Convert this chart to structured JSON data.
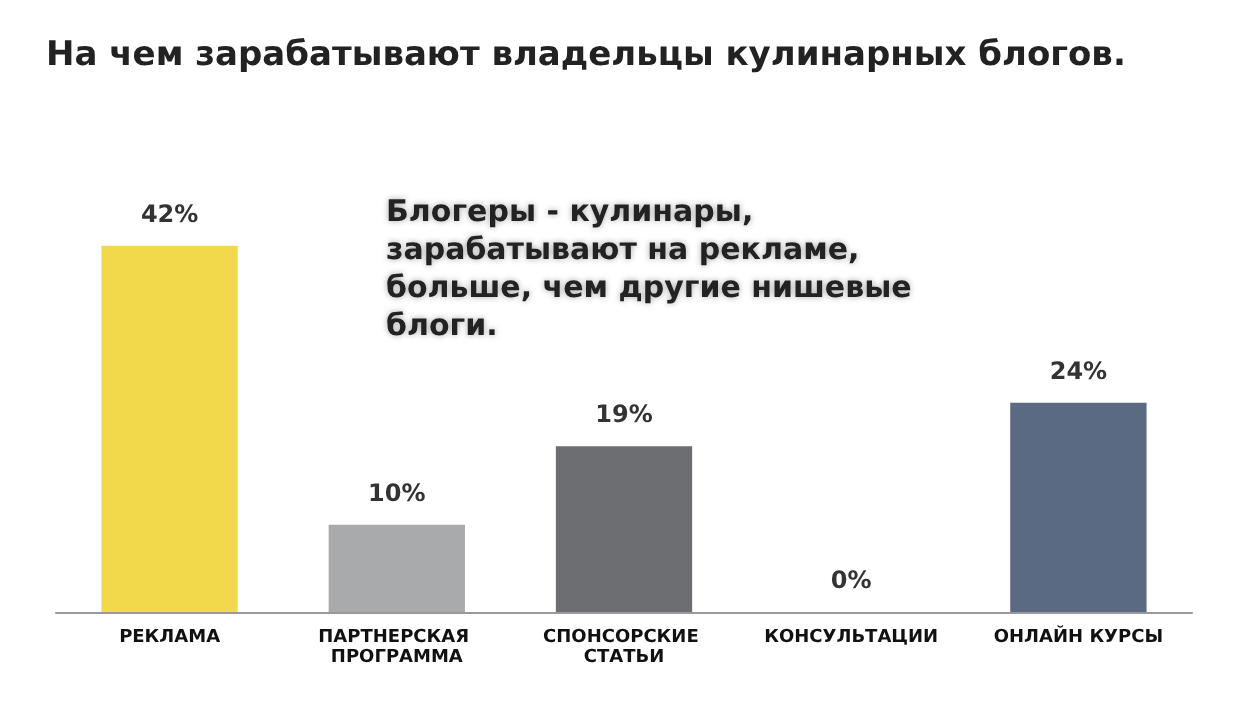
{
  "chart_data": {
    "type": "bar",
    "title": "На чем зарабатывают владельцы кулинарных блогов.",
    "annotations": [
      "Блогеры - кулинары, зарабатывают на рекламе, больше, чем другие нишевые блоги."
    ],
    "categories": [
      "РЕКЛАМА",
      "ПАРТНЕРСКАЯ ПРОГРАММА",
      "СПОНСОРСКИЕ СТАТЬИ",
      "КОНСУЛЬТАЦИИ",
      "ОНЛАЙН КУРСЫ"
    ],
    "values": [
      42,
      10,
      19,
      0,
      24
    ],
    "colors": [
      "#f2d94b",
      "#a9aaac",
      "#6d6e72",
      "#8a8a8a",
      "#5b6a83"
    ],
    "value_labels": [
      "42%",
      "10%",
      "19%",
      "0%",
      "24%"
    ]
  }
}
